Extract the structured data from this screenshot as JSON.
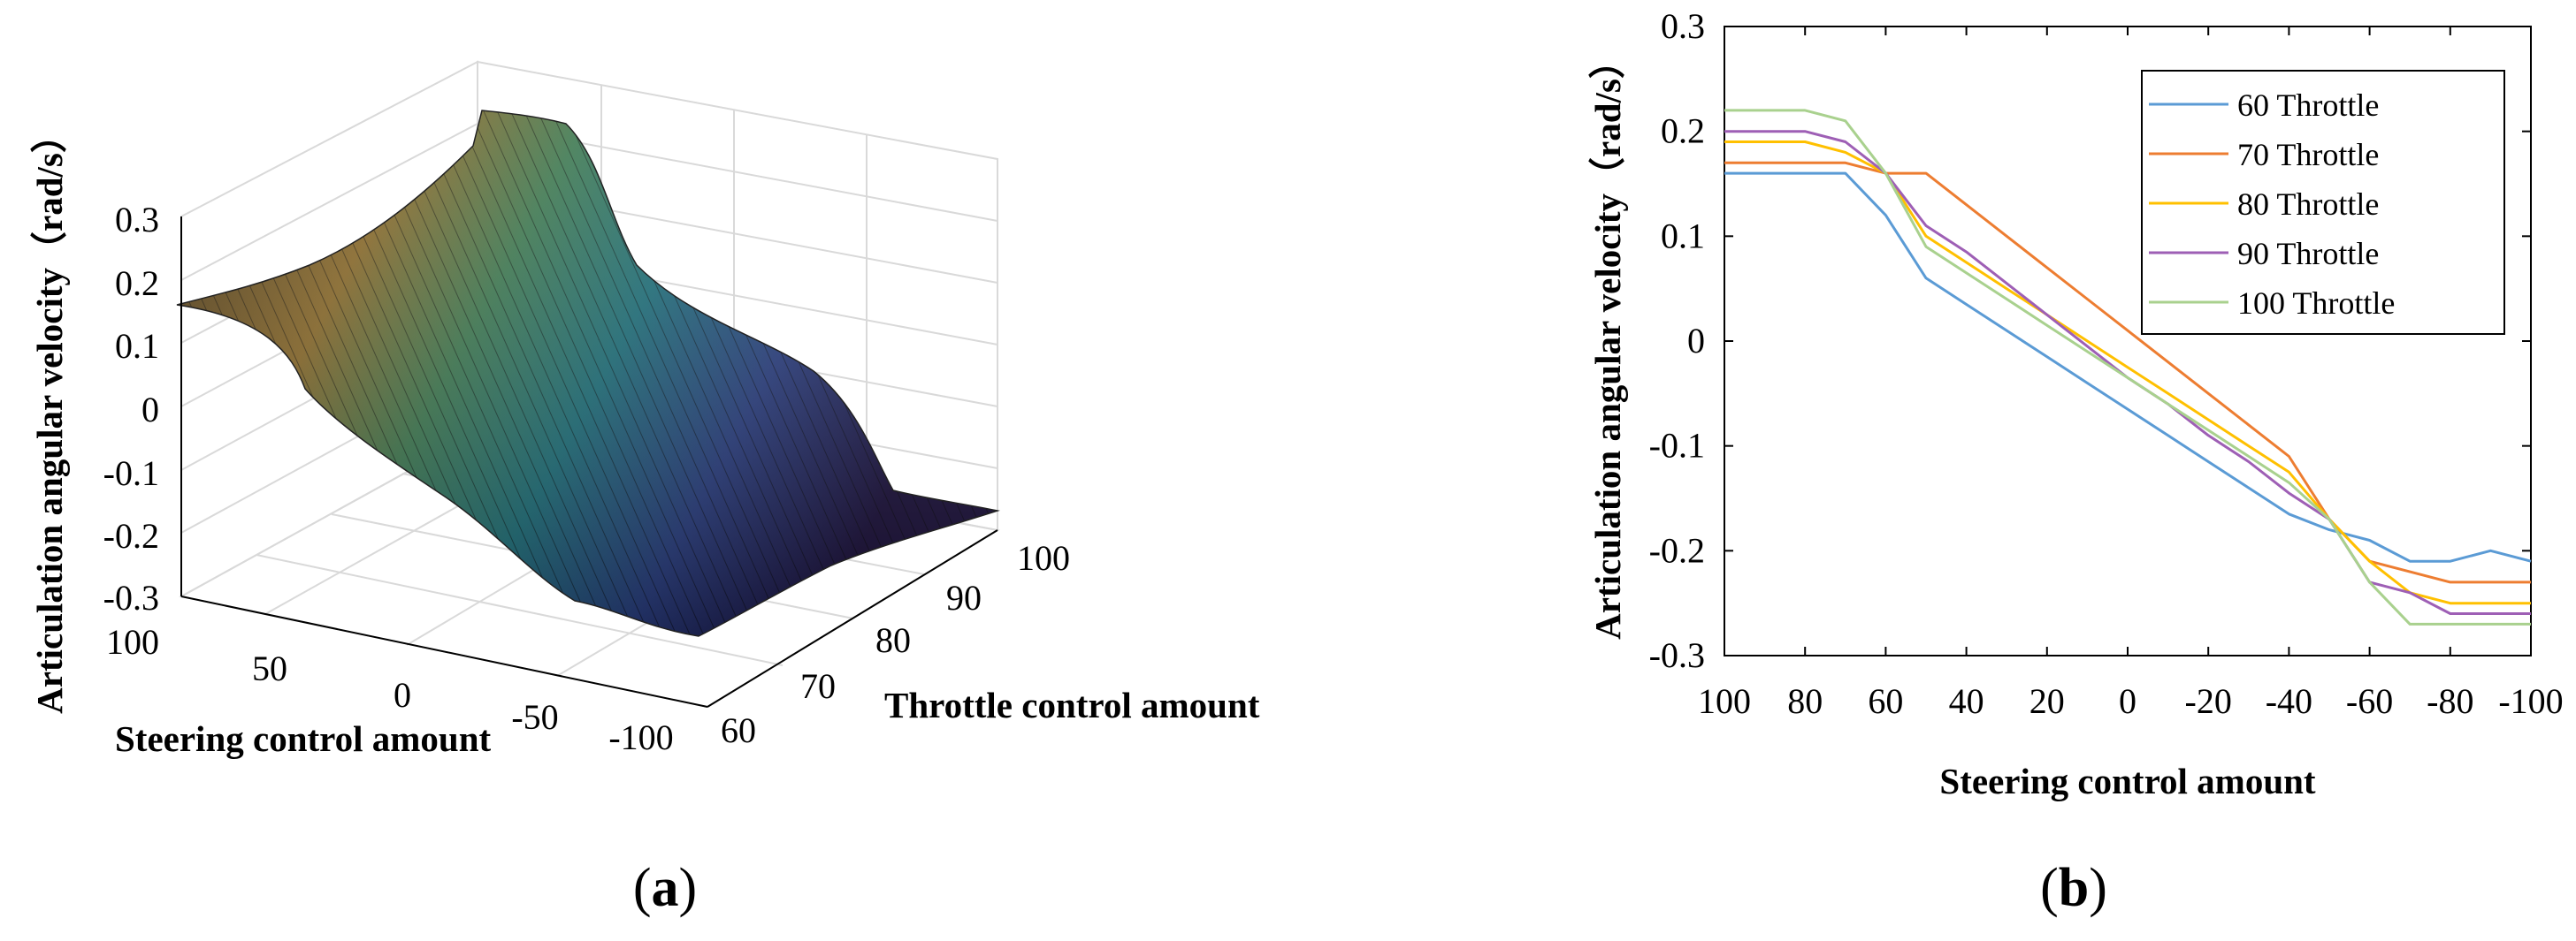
{
  "panels": [
    {
      "label_prefix": "(",
      "label_letter": "a",
      "label_suffix": ")"
    },
    {
      "label_prefix": "(",
      "label_letter": "b",
      "label_suffix": ")"
    }
  ],
  "chart_data": [
    {
      "type": "surface",
      "zlabel": "Articulation angular velocity（rad/s）",
      "xlabel": "Steering control amount",
      "ylabel": "Throttle control amount",
      "xticks": [
        "100",
        "50",
        "0",
        "-50",
        "-100"
      ],
      "yticks": [
        "60",
        "70",
        "80",
        "90",
        "100"
      ],
      "zticks": [
        "0.3",
        "0.2",
        "0.1",
        "0",
        "-0.1",
        "-0.2",
        "-0.3"
      ],
      "xlim": [
        100,
        -100
      ],
      "ylim": [
        60,
        100
      ],
      "zlim": [
        -0.3,
        0.3
      ],
      "colormap": [
        "#440154",
        "#3b528b",
        "#21918c",
        "#5ec962",
        "#fde725"
      ],
      "grid": true
    },
    {
      "type": "line",
      "xlabel": "Steering control amount",
      "ylabel": "Articulation angular velocity（rad/s）",
      "x": [
        100,
        90,
        80,
        70,
        60,
        50,
        40,
        30,
        20,
        10,
        0,
        -10,
        -20,
        -30,
        -40,
        -50,
        -60,
        -70,
        -80,
        -90,
        -100
      ],
      "xticks": [
        "100",
        "80",
        "60",
        "40",
        "20",
        "0",
        "-20",
        "-40",
        "-60",
        "-80",
        "-100"
      ],
      "yticks": [
        "0.3",
        "0.2",
        "0.1",
        "0",
        "-0.1",
        "-0.2",
        "-0.3"
      ],
      "xlim": [
        100,
        -100
      ],
      "ylim": [
        -0.3,
        0.3
      ],
      "legend_position": "top-right",
      "series": [
        {
          "name": "60 Throttle",
          "color": "#5b9bd5",
          "values": [
            0.16,
            0.16,
            0.16,
            0.16,
            0.12,
            0.06,
            0.035,
            0.01,
            -0.015,
            -0.04,
            -0.065,
            -0.09,
            -0.115,
            -0.14,
            -0.165,
            -0.18,
            -0.19,
            -0.21,
            -0.21,
            -0.2,
            -0.21
          ]
        },
        {
          "name": "70 Throttle",
          "color": "#ed7d31",
          "values": [
            0.17,
            0.17,
            0.17,
            0.17,
            0.16,
            0.16,
            0.13,
            0.1,
            0.07,
            0.04,
            0.01,
            -0.02,
            -0.05,
            -0.08,
            -0.11,
            -0.17,
            -0.21,
            -0.22,
            -0.23,
            -0.23,
            -0.23
          ]
        },
        {
          "name": "80 Throttle",
          "color": "#ffc000",
          "values": [
            0.19,
            0.19,
            0.19,
            0.18,
            0.16,
            0.1,
            0.075,
            0.05,
            0.025,
            0.0,
            -0.025,
            -0.05,
            -0.075,
            -0.1,
            -0.125,
            -0.17,
            -0.21,
            -0.24,
            -0.25,
            -0.25,
            -0.25
          ]
        },
        {
          "name": "90 Throttle",
          "color": "#9e5fb5",
          "values": [
            0.2,
            0.2,
            0.2,
            0.19,
            0.16,
            0.11,
            0.085,
            0.055,
            0.025,
            -0.005,
            -0.035,
            -0.06,
            -0.09,
            -0.115,
            -0.145,
            -0.17,
            -0.23,
            -0.24,
            -0.26,
            -0.26,
            -0.26
          ]
        },
        {
          "name": "100 Throttle",
          "color": "#a9d18e",
          "values": [
            0.22,
            0.22,
            0.22,
            0.21,
            0.16,
            0.09,
            0.065,
            0.04,
            0.015,
            -0.01,
            -0.035,
            -0.06,
            -0.085,
            -0.11,
            -0.135,
            -0.17,
            -0.23,
            -0.27,
            -0.27,
            -0.27,
            -0.27
          ]
        }
      ]
    }
  ]
}
